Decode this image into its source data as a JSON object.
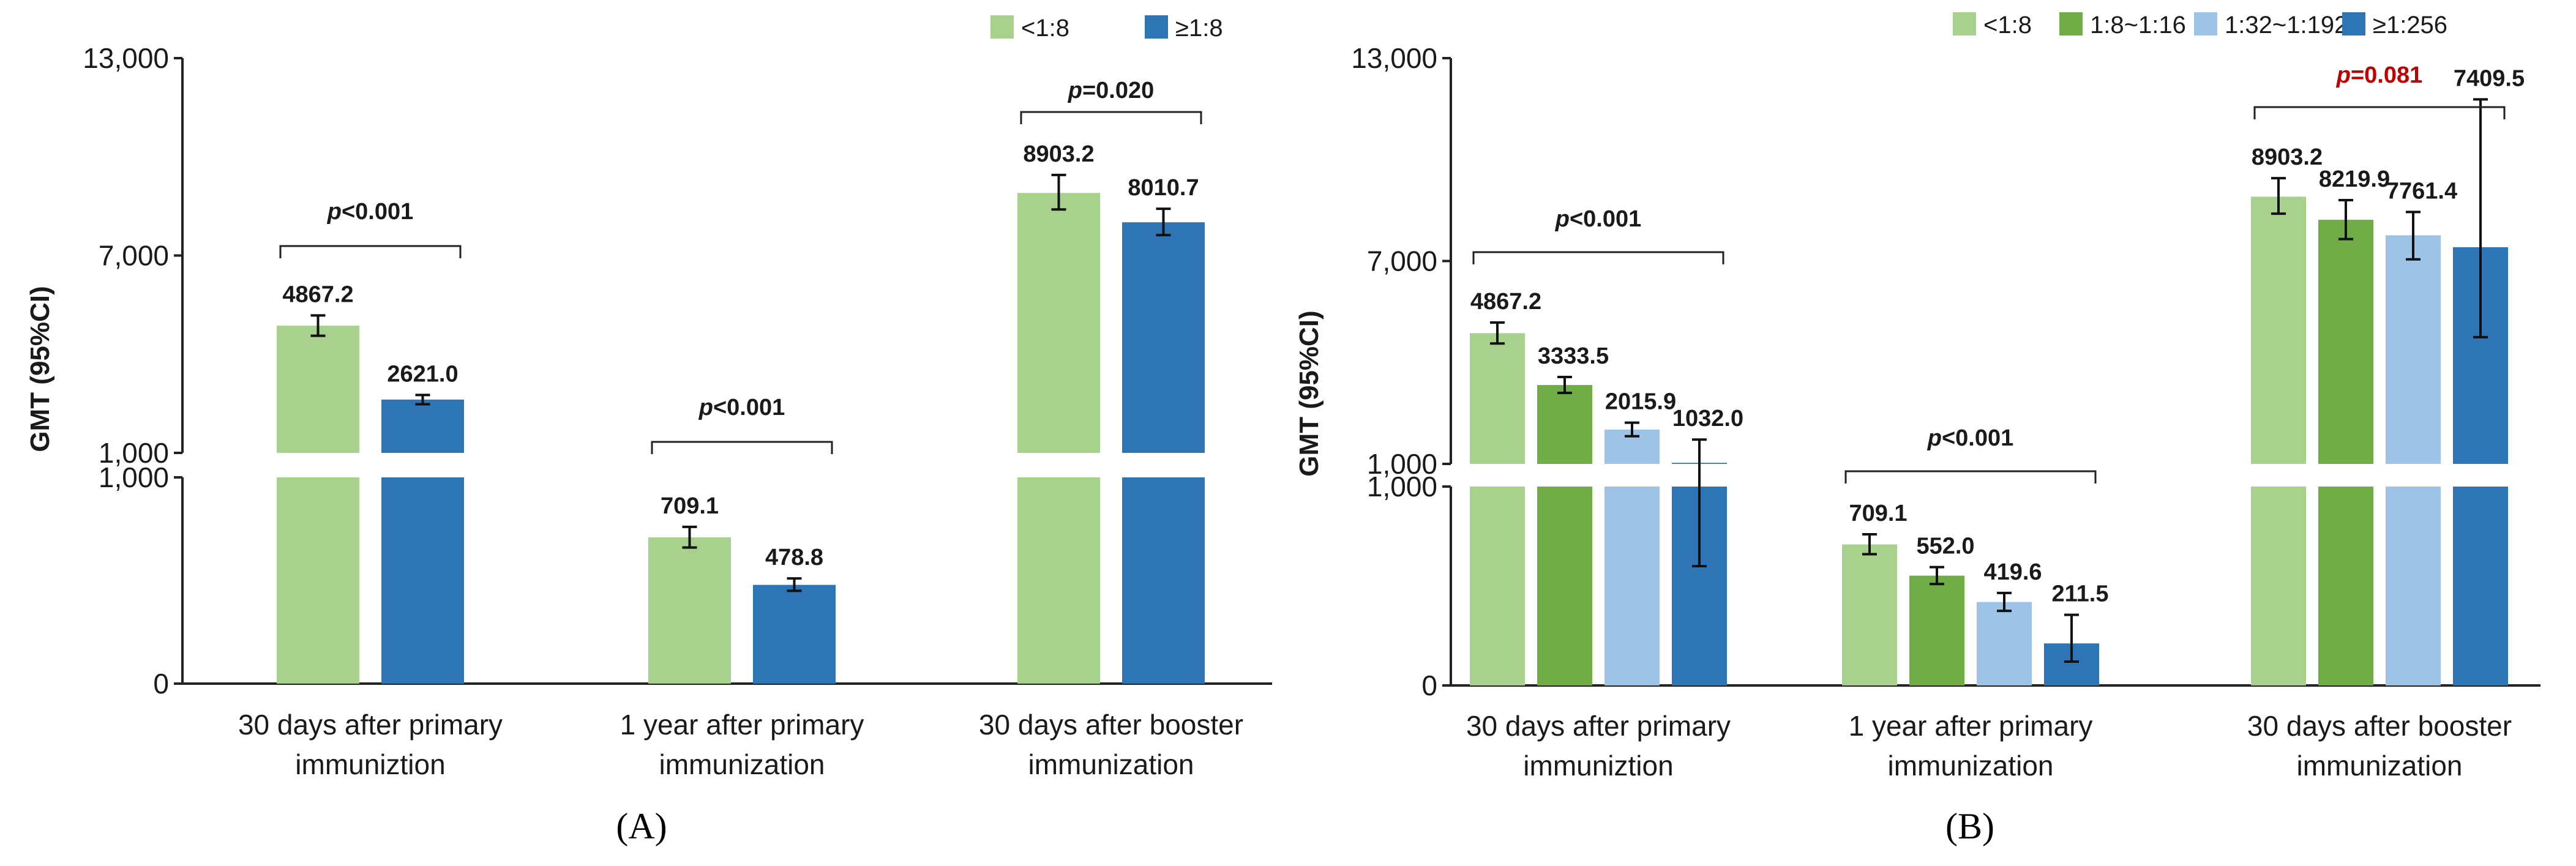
{
  "chart_data": [
    {
      "type": "bar",
      "panel_label": "(A)",
      "ylabel": "GMT  (95%CI)",
      "y_ticks": [
        "13,000",
        "7,000",
        "1,000",
        "1,000",
        "0"
      ],
      "y_break": {
        "lower_range": [
          0,
          1000
        ],
        "upper_range": [
          1000,
          13000
        ]
      },
      "categories": [
        "30 days after primary immuniztion",
        "1 year after primary immunization",
        "30 days after booster immunization"
      ],
      "category_lines": [
        [
          "30 days after primary",
          "immuniztion"
        ],
        [
          "1 year after primary",
          "immunization"
        ],
        [
          "30 days after booster",
          "immunization"
        ]
      ],
      "series": [
        {
          "name": "<1:8",
          "color": "#a9d18e",
          "values": [
            4867.2,
            709.1,
            8903.2
          ],
          "labels": [
            "4867.2",
            "709.1",
            "8903.2"
          ],
          "ci_low": [
            4560,
            660,
            8400
          ],
          "ci_high": [
            5180,
            760,
            9450
          ]
        },
        {
          "name": "≥1:8",
          "color": "#2e75b6",
          "values": [
            2621.0,
            478.8,
            8010.7
          ],
          "labels": [
            "2621.0",
            "478.8",
            "8010.7"
          ],
          "ci_low": [
            2480,
            450,
            7620
          ],
          "ci_high": [
            2760,
            510,
            8420
          ]
        }
      ],
      "pvalues": [
        {
          "prefix": "p",
          "text": "<0.001",
          "color": "#1a1a1a"
        },
        {
          "prefix": "p",
          "text": "<0.001",
          "color": "#1a1a1a"
        },
        {
          "prefix": "p",
          "text": "=0.020",
          "color": "#1a1a1a"
        }
      ]
    },
    {
      "type": "bar",
      "panel_label": "(B)",
      "ylabel": "GMT  (95%CI)",
      "y_ticks": [
        "13,000",
        "7,000",
        "1,000",
        "1,000",
        "0"
      ],
      "y_break": {
        "lower_range": [
          0,
          1000
        ],
        "upper_range": [
          1000,
          13000
        ]
      },
      "categories": [
        "30 days after primary immuniztion",
        "1 year after primary immunization",
        "30 days after booster immunization"
      ],
      "category_lines": [
        [
          "30 days after primary",
          "immuniztion"
        ],
        [
          "1 year after primary",
          "immunization"
        ],
        [
          "30 days after booster",
          "immunization"
        ]
      ],
      "series": [
        {
          "name": "<1:8",
          "color": "#a9d18e",
          "values": [
            4867.2,
            709.1,
            8903.2
          ],
          "labels": [
            "4867.2",
            "709.1",
            "8903.2"
          ],
          "ci_low": [
            4560,
            660,
            8400
          ],
          "ci_high": [
            5180,
            760,
            9450
          ]
        },
        {
          "name": "1:8~1:16",
          "color": "#70ad47",
          "values": [
            3333.5,
            552.0,
            8219.9
          ],
          "labels": [
            "3333.5",
            "552.0",
            "8219.9"
          ],
          "ci_low": [
            3100,
            510,
            7650
          ],
          "ci_high": [
            3570,
            595,
            8800
          ]
        },
        {
          "name": "1:32~1:192",
          "color": "#9dc3e6",
          "values": [
            2015.9,
            419.6,
            7761.4
          ],
          "labels": [
            "2015.9",
            "419.6",
            "7761.4"
          ],
          "ci_low": [
            1820,
            375,
            7050
          ],
          "ci_high": [
            2220,
            465,
            8450
          ]
        },
        {
          "name": "≥1:256",
          "color": "#2e75b6",
          "values": [
            1032.0,
            211.5,
            7409.5
          ],
          "labels": [
            "1032.0",
            "211.5",
            "7409.5"
          ],
          "ci_low": [
            600,
            120,
            4750
          ],
          "ci_high": [
            1720,
            355,
            11780
          ]
        }
      ],
      "pvalues": [
        {
          "prefix": "p",
          "text": "<0.001",
          "color": "#1a1a1a"
        },
        {
          "prefix": "p",
          "text": "<0.001",
          "color": "#1a1a1a"
        },
        {
          "prefix": "p",
          "text": "=0.081",
          "color": "#c00000"
        }
      ]
    }
  ]
}
